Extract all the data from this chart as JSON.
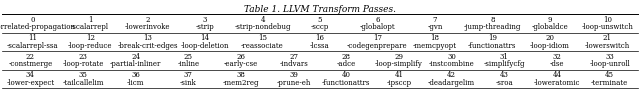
{
  "title": "Table 1. LLVM Transform Passes.",
  "rows": [
    {
      "numbers": [
        "0",
        "1",
        "2",
        "3",
        "4",
        "5",
        "6",
        "7",
        "8",
        "9",
        "10"
      ],
      "names": [
        "-correlated-propagation",
        "-scalarrepl",
        "-lowerinvoke",
        "-strip",
        "-strip-nondebug",
        "-sccp",
        "-globalopt",
        "-gvn",
        "-jump-threading",
        "-globaldce",
        "-loop-unswitch"
      ]
    },
    {
      "numbers": [
        "11",
        "12",
        "13",
        "14",
        "15",
        "16",
        "17",
        "18",
        "19",
        "20",
        "21"
      ],
      "names": [
        "-scalarrepl-ssa",
        "-loop-reduce",
        "-break-crit-edges",
        "-loop-deletion",
        "-reassociate",
        "-lcssa",
        "-codegenprepare",
        "-memcpyopt",
        "-functionattrs",
        "-loop-idiom",
        "-lowerswitch"
      ]
    },
    {
      "numbers": [
        "22",
        "23",
        "24",
        "25",
        "26",
        "27",
        "28",
        "29",
        "30",
        "31",
        "32",
        "33"
      ],
      "names": [
        "-constmerge",
        "-loop-rotate",
        "-partial-inliner",
        "-inline",
        "-early-cse",
        "-indvars",
        "-adce",
        "-loop-simplify",
        "-instcombine",
        "-simplifycfg",
        "-dse",
        "-loop-unroll"
      ]
    },
    {
      "numbers": [
        "34",
        "35",
        "36",
        "37",
        "38",
        "39",
        "40",
        "41",
        "42",
        "43",
        "44",
        "45"
      ],
      "names": [
        "-lower-expect",
        "-tailcallelim",
        "-licm",
        "-sink",
        "-mem2reg",
        "-prune-eh",
        "-functionattrs",
        "-ipsccp",
        "-deadargelim",
        "-sroa",
        "-loweratomic",
        "-terminate"
      ]
    }
  ],
  "line_color": "#000000",
  "title_fontsize": 6.5,
  "num_fontsize": 5.0,
  "name_fontsize": 5.0,
  "fig_width": 6.4,
  "fig_height": 0.93,
  "dpi": 100
}
